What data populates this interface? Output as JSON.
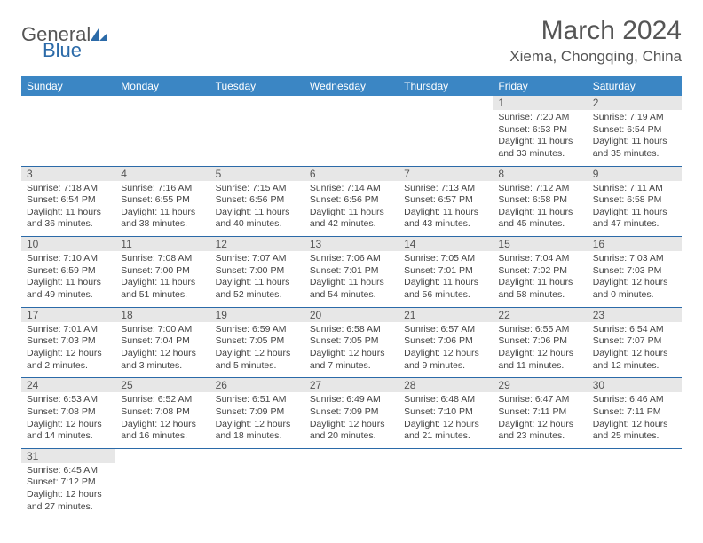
{
  "logo": {
    "part1": "Genera",
    "part2": "l",
    "part3": "Blue"
  },
  "title": "March 2024",
  "location": "Xiema, Chongqing, China",
  "colors": {
    "header_bg": "#3b86c4",
    "header_text": "#ffffff",
    "border": "#2b6aa8",
    "daynum_bg": "#e7e7e7",
    "text": "#444444",
    "logo_blue": "#2b6aa8"
  },
  "weekdays": [
    "Sunday",
    "Monday",
    "Tuesday",
    "Wednesday",
    "Thursday",
    "Friday",
    "Saturday"
  ],
  "weeks": [
    [
      null,
      null,
      null,
      null,
      null,
      {
        "n": "1",
        "sunrise": "7:20 AM",
        "sunset": "6:53 PM",
        "day_h": "11",
        "day_m": "33"
      },
      {
        "n": "2",
        "sunrise": "7:19 AM",
        "sunset": "6:54 PM",
        "day_h": "11",
        "day_m": "35"
      }
    ],
    [
      {
        "n": "3",
        "sunrise": "7:18 AM",
        "sunset": "6:54 PM",
        "day_h": "11",
        "day_m": "36"
      },
      {
        "n": "4",
        "sunrise": "7:16 AM",
        "sunset": "6:55 PM",
        "day_h": "11",
        "day_m": "38"
      },
      {
        "n": "5",
        "sunrise": "7:15 AM",
        "sunset": "6:56 PM",
        "day_h": "11",
        "day_m": "40"
      },
      {
        "n": "6",
        "sunrise": "7:14 AM",
        "sunset": "6:56 PM",
        "day_h": "11",
        "day_m": "42"
      },
      {
        "n": "7",
        "sunrise": "7:13 AM",
        "sunset": "6:57 PM",
        "day_h": "11",
        "day_m": "43"
      },
      {
        "n": "8",
        "sunrise": "7:12 AM",
        "sunset": "6:58 PM",
        "day_h": "11",
        "day_m": "45"
      },
      {
        "n": "9",
        "sunrise": "7:11 AM",
        "sunset": "6:58 PM",
        "day_h": "11",
        "day_m": "47"
      }
    ],
    [
      {
        "n": "10",
        "sunrise": "7:10 AM",
        "sunset": "6:59 PM",
        "day_h": "11",
        "day_m": "49"
      },
      {
        "n": "11",
        "sunrise": "7:08 AM",
        "sunset": "7:00 PM",
        "day_h": "11",
        "day_m": "51"
      },
      {
        "n": "12",
        "sunrise": "7:07 AM",
        "sunset": "7:00 PM",
        "day_h": "11",
        "day_m": "52"
      },
      {
        "n": "13",
        "sunrise": "7:06 AM",
        "sunset": "7:01 PM",
        "day_h": "11",
        "day_m": "54"
      },
      {
        "n": "14",
        "sunrise": "7:05 AM",
        "sunset": "7:01 PM",
        "day_h": "11",
        "day_m": "56"
      },
      {
        "n": "15",
        "sunrise": "7:04 AM",
        "sunset": "7:02 PM",
        "day_h": "11",
        "day_m": "58"
      },
      {
        "n": "16",
        "sunrise": "7:03 AM",
        "sunset": "7:03 PM",
        "day_h": "12",
        "day_m": "0"
      }
    ],
    [
      {
        "n": "17",
        "sunrise": "7:01 AM",
        "sunset": "7:03 PM",
        "day_h": "12",
        "day_m": "2"
      },
      {
        "n": "18",
        "sunrise": "7:00 AM",
        "sunset": "7:04 PM",
        "day_h": "12",
        "day_m": "3"
      },
      {
        "n": "19",
        "sunrise": "6:59 AM",
        "sunset": "7:05 PM",
        "day_h": "12",
        "day_m": "5"
      },
      {
        "n": "20",
        "sunrise": "6:58 AM",
        "sunset": "7:05 PM",
        "day_h": "12",
        "day_m": "7"
      },
      {
        "n": "21",
        "sunrise": "6:57 AM",
        "sunset": "7:06 PM",
        "day_h": "12",
        "day_m": "9"
      },
      {
        "n": "22",
        "sunrise": "6:55 AM",
        "sunset": "7:06 PM",
        "day_h": "12",
        "day_m": "11"
      },
      {
        "n": "23",
        "sunrise": "6:54 AM",
        "sunset": "7:07 PM",
        "day_h": "12",
        "day_m": "12"
      }
    ],
    [
      {
        "n": "24",
        "sunrise": "6:53 AM",
        "sunset": "7:08 PM",
        "day_h": "12",
        "day_m": "14"
      },
      {
        "n": "25",
        "sunrise": "6:52 AM",
        "sunset": "7:08 PM",
        "day_h": "12",
        "day_m": "16"
      },
      {
        "n": "26",
        "sunrise": "6:51 AM",
        "sunset": "7:09 PM",
        "day_h": "12",
        "day_m": "18"
      },
      {
        "n": "27",
        "sunrise": "6:49 AM",
        "sunset": "7:09 PM",
        "day_h": "12",
        "day_m": "20"
      },
      {
        "n": "28",
        "sunrise": "6:48 AM",
        "sunset": "7:10 PM",
        "day_h": "12",
        "day_m": "21"
      },
      {
        "n": "29",
        "sunrise": "6:47 AM",
        "sunset": "7:11 PM",
        "day_h": "12",
        "day_m": "23"
      },
      {
        "n": "30",
        "sunrise": "6:46 AM",
        "sunset": "7:11 PM",
        "day_h": "12",
        "day_m": "25"
      }
    ],
    [
      {
        "n": "31",
        "sunrise": "6:45 AM",
        "sunset": "7:12 PM",
        "day_h": "12",
        "day_m": "27"
      },
      null,
      null,
      null,
      null,
      null,
      null
    ]
  ],
  "labels": {
    "sunrise_prefix": "Sunrise: ",
    "sunset_prefix": "Sunset: ",
    "daylight_prefix": "Daylight: ",
    "hours_word": " hours",
    "and_word": "and ",
    "minutes_word": " minutes."
  }
}
